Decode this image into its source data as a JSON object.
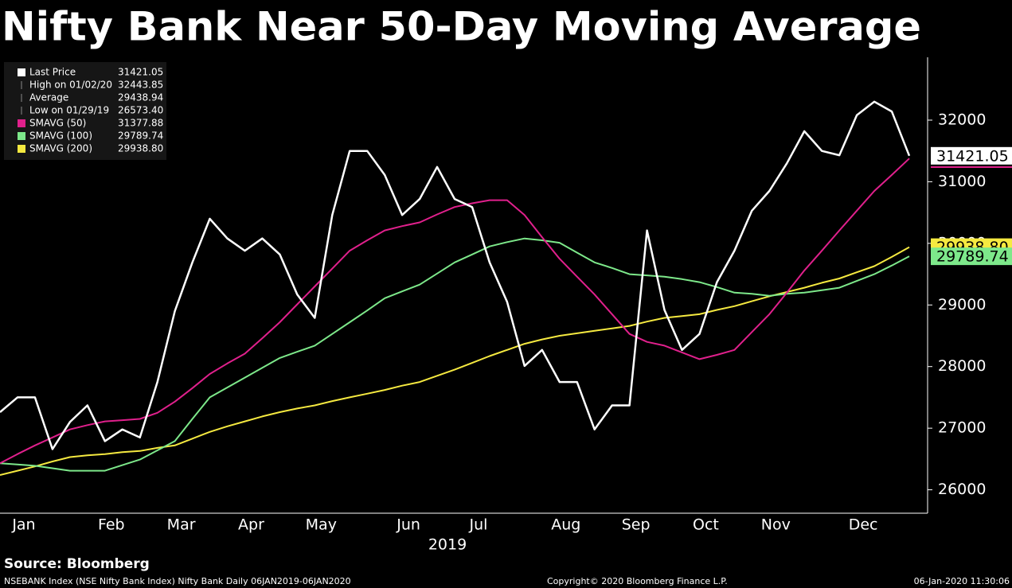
{
  "chart_data": {
    "type": "line",
    "title": "Nifty Bank Near 50-Day Moving Average",
    "x_label": "2019",
    "source": "Source: Bloomberg",
    "footer_left": "NSEBANK Index (NSE Nifty Bank Index) Nifty Bank  Daily 06JAN2019-06JAN2020",
    "footer_center": "Copyright© 2020 Bloomberg Finance L.P.",
    "footer_right": "06-Jan-2020 11:30:06",
    "categories": [
      null,
      "Jan",
      null,
      null,
      null,
      null,
      "Feb",
      null,
      null,
      null,
      "Mar",
      null,
      null,
      null,
      "Apr",
      null,
      null,
      null,
      "May",
      null,
      null,
      null,
      null,
      "Jun",
      null,
      null,
      null,
      "Jul",
      null,
      null,
      null,
      null,
      "Aug",
      null,
      null,
      null,
      "Sep",
      null,
      null,
      null,
      "Oct",
      null,
      null,
      null,
      "Nov",
      null,
      null,
      null,
      null,
      "Dec",
      null,
      null,
      null
    ],
    "series": [
      {
        "name": "Last Price",
        "color": "#ffffff",
        "legend_value": "31421.05",
        "values": [
          27260,
          27500,
          27500,
          26660,
          27100,
          27370,
          26790,
          26980,
          26850,
          27750,
          28900,
          29690,
          30400,
          30080,
          29880,
          30080,
          29820,
          29170,
          28790,
          30460,
          31500,
          31500,
          31110,
          30460,
          30720,
          31240,
          30720,
          30590,
          29690,
          29050,
          28010,
          28270,
          27750,
          27750,
          26980,
          27370,
          27370,
          30210,
          28920,
          28270,
          28530,
          29370,
          29880,
          30530,
          30850,
          31300,
          31820,
          31500,
          31430,
          32080,
          32300,
          32140,
          31421.05
        ]
      },
      {
        "name": "SMAVG (50)",
        "color": "#e0208c",
        "legend_value": "31377.88",
        "values": [
          26430,
          26580,
          26720,
          26850,
          26980,
          27050,
          27110,
          27130,
          27150,
          27250,
          27430,
          27650,
          27880,
          28050,
          28210,
          28460,
          28720,
          29010,
          29300,
          29590,
          29880,
          30050,
          30210,
          30280,
          30340,
          30470,
          30590,
          30650,
          30700,
          30700,
          30460,
          30100,
          29750,
          29460,
          29170,
          28850,
          28530,
          28400,
          28340,
          28230,
          28120,
          28190,
          28270,
          28560,
          28850,
          29200,
          29560,
          29880,
          30210,
          30530,
          30850,
          31110,
          31377.88
        ]
      },
      {
        "name": "SMAVG (100)",
        "color": "#7de88a",
        "legend_value": "29789.74",
        "values": [
          26430,
          26410,
          26390,
          26350,
          26310,
          26310,
          26310,
          26400,
          26490,
          26640,
          26790,
          27150,
          27500,
          27660,
          27820,
          27980,
          28140,
          28240,
          28340,
          28530,
          28720,
          28910,
          29110,
          29220,
          29330,
          29510,
          29690,
          29820,
          29950,
          30020,
          30080,
          30050,
          30010,
          29850,
          29690,
          29600,
          29500,
          29480,
          29460,
          29420,
          29370,
          29290,
          29200,
          29180,
          29150,
          29180,
          29200,
          29240,
          29280,
          29390,
          29500,
          29640,
          29789.74
        ]
      },
      {
        "name": "SMAVG (200)",
        "color": "#f5e940",
        "legend_value": "29938.80",
        "values": [
          26240,
          26310,
          26380,
          26460,
          26530,
          26560,
          26580,
          26610,
          26630,
          26680,
          26720,
          26830,
          26940,
          27030,
          27110,
          27190,
          27260,
          27320,
          27370,
          27440,
          27500,
          27560,
          27620,
          27690,
          27750,
          27850,
          27950,
          28060,
          28170,
          28270,
          28370,
          28440,
          28500,
          28540,
          28580,
          28620,
          28660,
          28730,
          28790,
          28820,
          28850,
          28920,
          28980,
          29060,
          29140,
          29210,
          29280,
          29360,
          29430,
          29530,
          29630,
          29780,
          29938.8
        ]
      }
    ],
    "stats": [
      {
        "label": "High on 01/02/20",
        "value": "32443.85"
      },
      {
        "label": "Average",
        "value": "29438.94"
      },
      {
        "label": "Low on 01/29/19",
        "value": "26573.40"
      }
    ],
    "ylim": [
      25620,
      33020
    ],
    "yticks": [
      26000,
      27000,
      28000,
      29000,
      30000,
      31000,
      32000
    ],
    "grid": false
  }
}
